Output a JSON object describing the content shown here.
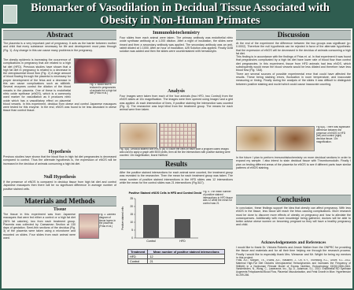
{
  "header": {
    "title": "Biomarker of Vasodilation in Decidual Tissue Associated with Obesity in Non-Human Primates"
  },
  "abstract": {
    "heading": "Abstract",
    "text1": "The placenta is a very important part of pregnancy. It acts as the barrier between mother and child that every substance necessary for life and development must pass through (Fig. 1). Any change in this can cause many problems in the pregnancy.",
    "text2": "The obesity epidemic is increasing the occurrence of complications in pregnancy that are related to a high fat diet (HFD). Previous studies have shown that a high fat diet in pregnancy is related to a decrease in the uteroplacental blood flow (Fig. 2) A large amount of blood flowing through the placenta is necessary for proper development of the fetus and a decrease in this can cause complications such as stillbirth. Several enzymes control the dilation of the blood vessels in the placenta. One of these is endothelial nitric oxide synthase (eNOS), which is a commonly used marker for vasodilation as it produces nitric oxide which has a vasodilatory effect on placental blood vessels. In this experiment, decidua from obese and control Japanese macaques were tested for this enzyme. In the end, eNOS was found to be less abundant in obese tissue than control tissue.",
    "caption": "Fig. 1. Blood flow is reduced in pregnancies of animals fed a high fat diet (Frias et al.)"
  },
  "hypothesis": {
    "heading": "Hypothesis",
    "text": "Previous studies have shown that the blood flow in high fat diet pregnancies is decreased compared to control. Thus the alternate hypothesis is, the expression of eNOS will be increased in the decidua of animals consuming a high fat diet."
  },
  "null_hypothesis": {
    "heading": "Null Hypothesis",
    "text": "If the presence of eNOS is compared in decidua tissue from high fat diet and control Japanese macaques then there will be no significant difference in average number of positive stained cells."
  },
  "methods": {
    "heading": "Materials and Methods",
    "subheading": "Tissue",
    "text": "The tissue in this experiment was from Japanese macaques that were fed either a control or a high fat diet (36% fat calories), two from each treatment group. Placenta was collected by Caesarean Section at 130 days of gestation. Semi-thin sections of the decidua (Fig. 3) of the placenta were taken using a microtome and mounted on slides. Four slides from each animal were used.",
    "caption": "Fig. 3. Labeled diagram of tissue layers in the placenta (Frias et al.)"
  },
  "ihc": {
    "heading": "Immunohistochemistry",
    "text": "Four slides from each animal were taken. The primary antibody was endothelial nitric oxide synthase antibody at a 1:200 dilution. After a night of incubation, the slides were rinsed and then a secondary antibody was applied. The secondary antibody was an anti-rabbit diluted at 1:1000. After an hour of incubation, A/B Solution was applied. Finally DAB solution was added and then the slides were counterstained with hematoxylin."
  },
  "analysis": {
    "heading": "Analysis",
    "text": "Four images were taken from each of the four animals (two HFD, two Control) from the eNOS slides at 10x magnification. The images were then opened using ImageJ and a grid was applied. At each intersection of lines, if positive staining the intersection was counted (Fig. 4). The researcher was kept blind from the treatment group. The means for each animal were then taken.",
    "caption": "Fig. 4(A). Decidua stained with eNOS (B) To count the cells on each slide a program called ImageJ was used to apply a graph with 5000 pixels, then all the line intersections with positive staining were counted. 10x magnification, Ilcarol Hartford"
  },
  "results": {
    "heading": "Results",
    "text": "After the positive stained intersections for each animal were counted, the treatment group was revealed to the researcher. Then the mean for each treatment group was taken. The mean number of positive stained intersections in the HFD slides was 12 intersections while the mean for the control slides was 21 intersections (Fig.5&7).",
    "chart": {
      "type": "bar",
      "title": "Positive Stained eNOS Cells in HFD and Control Decidua",
      "y_label": "Positive stained cells",
      "categories": [
        "Control",
        "HFD"
      ],
      "values": [
        21,
        12
      ],
      "color": "#555555",
      "ylim": [
        0,
        25
      ],
      "yticks": [
        0,
        5,
        10,
        15,
        20,
        25
      ]
    },
    "chart_caption": "Fig. 5. The mean number of positive stained intersections in HFD tissue was 12 while the mean for control was 21",
    "table": {
      "headers": [
        "Treatment",
        "Mean number of positive stained intersections"
      ],
      "rows": [
        [
          "HFD",
          "12"
        ],
        [
          "Control",
          "21"
        ]
      ]
    }
  },
  "discussion": {
    "heading": "Discussion",
    "text1": "At the end of the experiment the difference between the two groups was significant (p= 0.0002). Therefore the null hypothesis can be rejected in favor of the alternate hypothesis: that the expression of eNOS will be decreased in the decidua of animals consuming a high fat diet.",
    "text2": "This finding is in accordance with the findings of Frias et. al. In that experiment it was found that pregnancies complicated by a high fat diet have lower rate of blood flow than control diet pregnancies. In this experiment, tissue from HFD animals had less eNOS, which subsequently would mean the blood vessels would be less dilated and therefore have less blood flow (Fig. 7&8).",
    "text3": "There are several sources of possible experimental error that could have affected the results. These being staining errors, fluctuation in room temperature, and inaccurate measuring or timing. Finally during the analysis of the slides it was difficult to distinguish between positive staining and nuclei which could cause inaccurate counting.",
    "caption": "Fig 6(A). There was significant difference between the presence of eNOS in HFD (left) and control (right) decidua tissue. 10x magnification.",
    "text4": "In the future I plan to perform immunohistochemistry on more decidual sections in order to expand my sample. I also intend to stain decidual tissue with Thrombomodulin. Finally I plan on testing different areas of the placenta for eNOS to see if different parts have similar patterns of eNOS staining."
  },
  "conclusion": {
    "heading": "Conclusion",
    "text": "In conclusion, these findings support the idea that obesity can affect pregnancy. With less eNOS in the tissue, less blood will reach the fetus causing complications. More research must be done to discover more effects of obesity on pregnancy and how to alleviate the consequences. Additionally with more knowledge being gathered, doctors will be able to better advise obese women on becoming pregnant so they will have a healthy pregnancy and child."
  },
  "acknowledgements": {
    "heading": "Acknowledgements and References",
    "text": "I would like to thank Dr. Victoria Roberts and Jessie Walker from the ONPRC for providing the tissue and materials and for all their time helping me through the research process. Finally I would like to especially thank Mrs. Wessmar and Mr. Wright for being my mentors in this project.",
    "refs": "Frias, A.E., Morgan, T.K., Evans, A.E., Rasanen, J., Oh, K.Y., Thornburg, K.L., Grove, K.L. 2011. Maternal High-Fat Diet Disturbs Uteroplacental Hemodynamics and Increases the Frequency of Stillbirth in a Nonhuman Primate Model of Excess Nutrition. Endocrinology 152(6):2456-2464. Vanderlinden, N., Wong, C., Lawerance, Inc., Dy, D., Adamson, S.L. 2010. Endothelial NO Synthase Augments Fetoplacental Blood Flow, Placental Vascularization, and Fetal Growth in Mice. Hypertension 61:259-266."
  }
}
